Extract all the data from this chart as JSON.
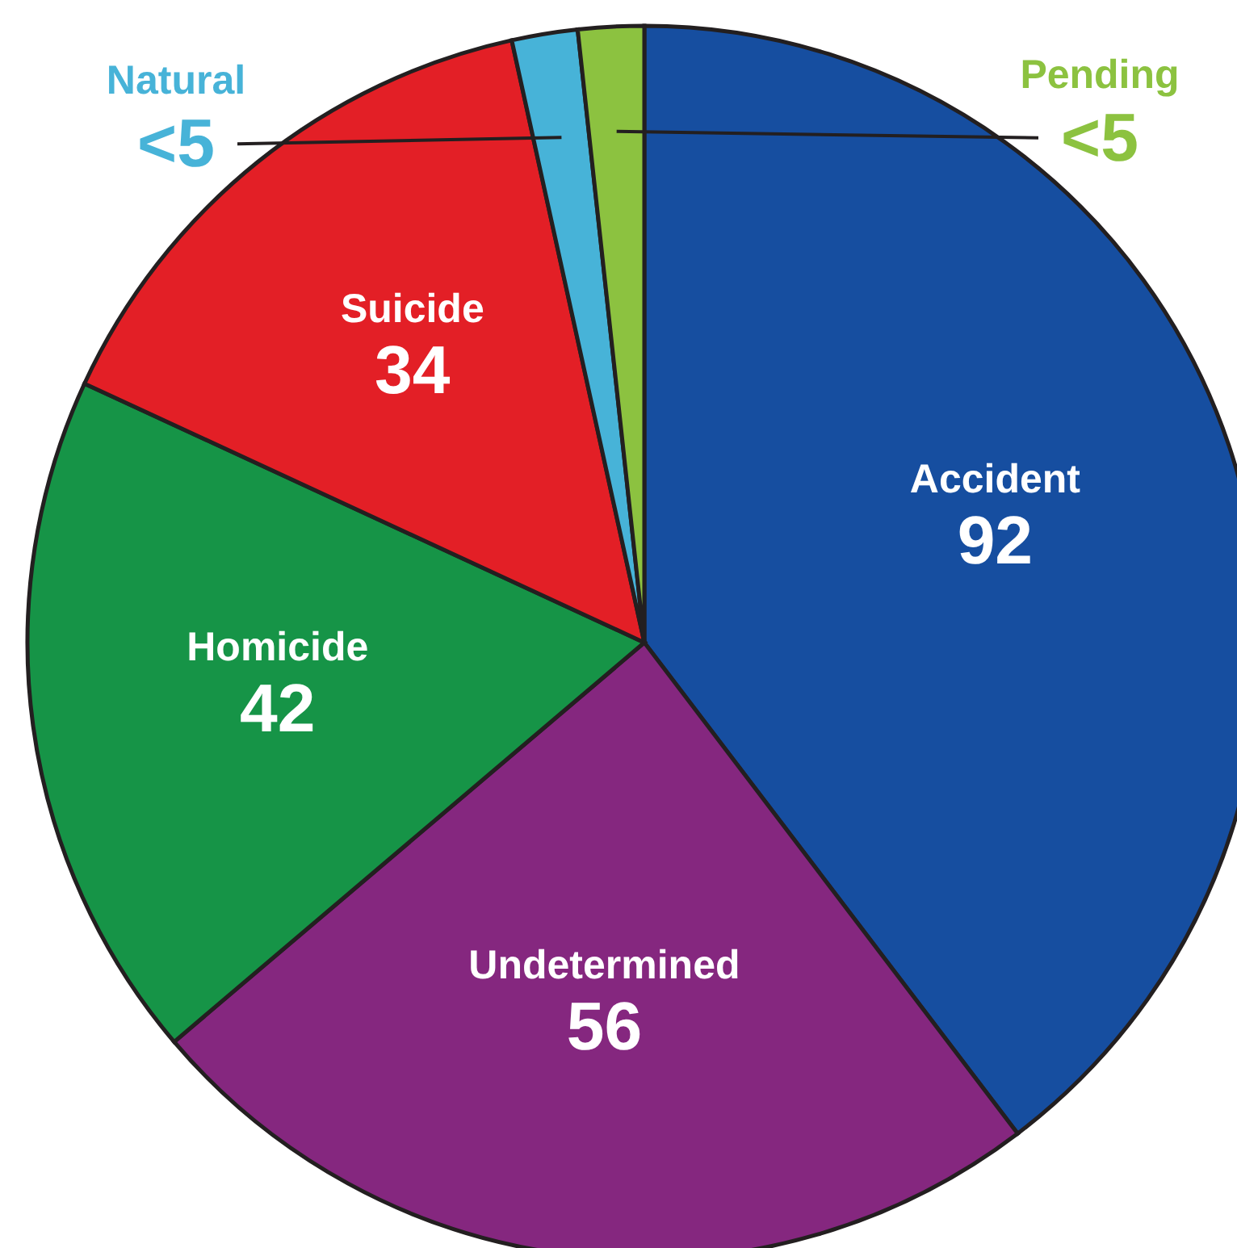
{
  "chart_data": {
    "type": "pie",
    "categories": [
      "Accident",
      "Undetermined",
      "Homicide",
      "Suicide",
      "Natural",
      "Pending"
    ],
    "values": [
      92,
      56,
      42,
      34,
      4,
      4
    ],
    "value_labels": [
      "92",
      "56",
      "42",
      "34",
      "<5",
      "<5"
    ],
    "colors": [
      "#164ea0",
      "#85277f",
      "#169447",
      "#e31f26",
      "#47b3d8",
      "#8cc240"
    ],
    "legend": false
  }
}
